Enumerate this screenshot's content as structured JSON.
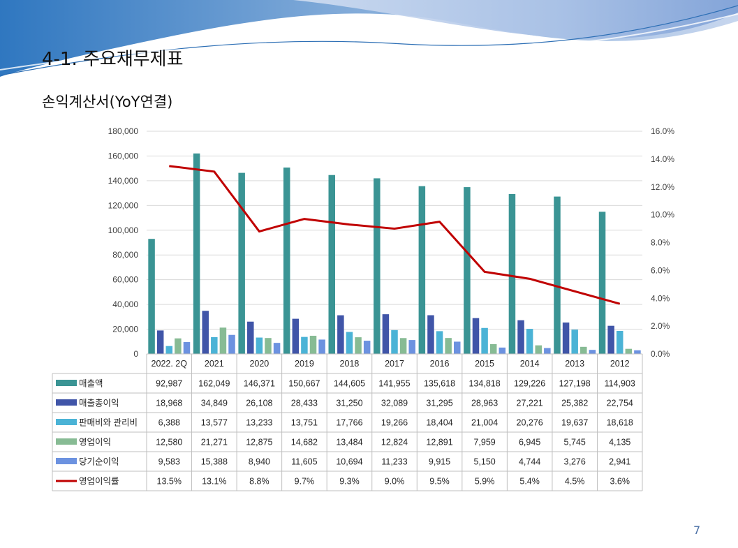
{
  "slide": {
    "heading": "4-1. 주요재무제표",
    "subheading": "손익계산서(YoY연결)",
    "page_number": "7"
  },
  "chart_data": {
    "type": "bar",
    "categories": [
      "2022. 2Q",
      "2021",
      "2020",
      "2019",
      "2018",
      "2017",
      "2016",
      "2015",
      "2014",
      "2013",
      "2012"
    ],
    "y_left": {
      "min": 0,
      "max": 180000,
      "step": 20000,
      "ticks": [
        "0",
        "20,000",
        "40,000",
        "60,000",
        "80,000",
        "100,000",
        "120,000",
        "140,000",
        "160,000",
        "180,000"
      ]
    },
    "y_right": {
      "min": 0,
      "max": 16,
      "step": 2,
      "ticks": [
        "0.0%",
        "2.0%",
        "4.0%",
        "6.0%",
        "8.0%",
        "10.0%",
        "12.0%",
        "14.0%",
        "16.0%"
      ]
    },
    "grid": true,
    "legend": "data-table",
    "series": [
      {
        "name": "매출액",
        "kind": "bar",
        "color": "#3a9494",
        "values": [
          92987,
          162049,
          146371,
          150667,
          144605,
          141955,
          135618,
          134818,
          129226,
          127198,
          114903
        ],
        "labels": [
          "92,987",
          "162,049",
          "146,371",
          "150,667",
          "144,605",
          "141,955",
          "135,618",
          "134,818",
          "129,226",
          "127,198",
          "114,903"
        ]
      },
      {
        "name": "매출총이익",
        "kind": "bar",
        "color": "#4055a8",
        "values": [
          18968,
          34849,
          26108,
          28433,
          31250,
          32089,
          31295,
          28963,
          27221,
          25382,
          22754
        ],
        "labels": [
          "18,968",
          "34,849",
          "26,108",
          "28,433",
          "31,250",
          "32,089",
          "31,295",
          "28,963",
          "27,221",
          "25,382",
          "22,754"
        ]
      },
      {
        "name": "판매비와 관리비",
        "kind": "bar",
        "color": "#4bb3d6",
        "values": [
          6388,
          13577,
          13233,
          13751,
          17766,
          19266,
          18404,
          21004,
          20276,
          19637,
          18618
        ],
        "labels": [
          "6,388",
          "13,577",
          "13,233",
          "13,751",
          "17,766",
          "19,266",
          "18,404",
          "21,004",
          "20,276",
          "19,637",
          "18,618"
        ]
      },
      {
        "name": "영업이익",
        "kind": "bar",
        "color": "#87bb94",
        "values": [
          12580,
          21271,
          12875,
          14682,
          13484,
          12824,
          12891,
          7959,
          6945,
          5745,
          4135
        ],
        "labels": [
          "12,580",
          "21,271",
          "12,875",
          "14,682",
          "13,484",
          "12,824",
          "12,891",
          "7,959",
          "6,945",
          "5,745",
          "4,135"
        ]
      },
      {
        "name": "당기순이익",
        "kind": "bar",
        "color": "#6c92e0",
        "values": [
          9583,
          15388,
          8940,
          11605,
          10694,
          11233,
          9915,
          5150,
          4744,
          3276,
          2941
        ],
        "labels": [
          "9,583",
          "15,388",
          "8,940",
          "11,605",
          "10,694",
          "11,233",
          "9,915",
          "5,150",
          "4,744",
          "3,276",
          "2,941"
        ]
      },
      {
        "name": "영업이익률",
        "kind": "line",
        "axis": "right",
        "color": "#c00000",
        "values": [
          13.5,
          13.1,
          8.8,
          9.7,
          9.3,
          9.0,
          9.5,
          5.9,
          5.4,
          4.5,
          3.6
        ],
        "labels": [
          "13.5%",
          "13.1%",
          "8.8%",
          "9.7%",
          "9.3%",
          "9.0%",
          "9.5%",
          "5.9%",
          "5.4%",
          "4.5%",
          "3.6%"
        ]
      }
    ]
  }
}
